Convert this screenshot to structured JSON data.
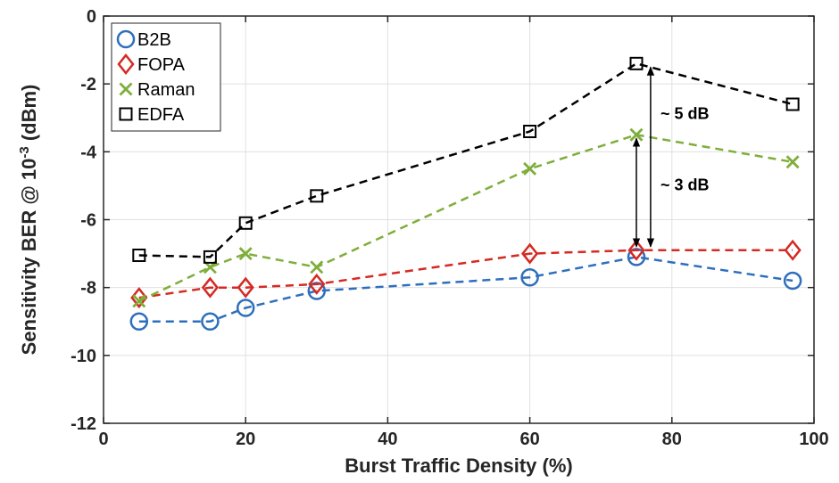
{
  "chart_data": {
    "type": "line",
    "xlabel": "Burst Traffic Density (%)",
    "ylabel": {
      "prefix": "Sensitivity BER @ 10",
      "superscript": "-3",
      "suffix": " (dBm)"
    },
    "xlim": [
      0,
      100
    ],
    "ylim": [
      -12,
      0
    ],
    "xticks": [
      0,
      20,
      40,
      60,
      80,
      100
    ],
    "yticks": [
      0,
      -2,
      -4,
      -6,
      -8,
      -10,
      -12
    ],
    "grid": true,
    "legend_position": "top-left",
    "series": [
      {
        "name": "B2B",
        "color": "#2e6fbd",
        "marker": "circle",
        "line_style": "dashed",
        "x": [
          5,
          15,
          20,
          30,
          60,
          75,
          97
        ],
        "y": [
          -9.0,
          -9.0,
          -8.6,
          -8.1,
          -7.7,
          -7.1,
          -7.8
        ]
      },
      {
        "name": "FOPA",
        "color": "#d42a23",
        "marker": "diamond",
        "line_style": "dashed",
        "x": [
          5,
          15,
          20,
          30,
          60,
          75,
          97
        ],
        "y": [
          -8.3,
          -8.0,
          -8.0,
          -7.9,
          -7.0,
          -6.9,
          -6.9
        ]
      },
      {
        "name": "Raman",
        "color": "#7fae3b",
        "marker": "x",
        "line_style": "dashed",
        "x": [
          5,
          15,
          20,
          30,
          60,
          75,
          97
        ],
        "y": [
          -8.4,
          -7.4,
          -7.0,
          -7.4,
          -4.5,
          -3.5,
          -4.3
        ]
      },
      {
        "name": "EDFA",
        "color": "#000000",
        "marker": "square",
        "line_style": "dashed",
        "x": [
          5,
          15,
          20,
          30,
          60,
          75,
          97
        ],
        "y": [
          -7.05,
          -7.1,
          -6.1,
          -5.3,
          -3.4,
          -1.4,
          -2.6
        ]
      }
    ],
    "annotations": [
      {
        "text": "~ 5 dB",
        "x": 77,
        "y1": -1.4,
        "y2": -6.9
      },
      {
        "text": "~ 3 dB",
        "x": 75,
        "y1": -3.5,
        "y2": -6.9
      }
    ]
  }
}
